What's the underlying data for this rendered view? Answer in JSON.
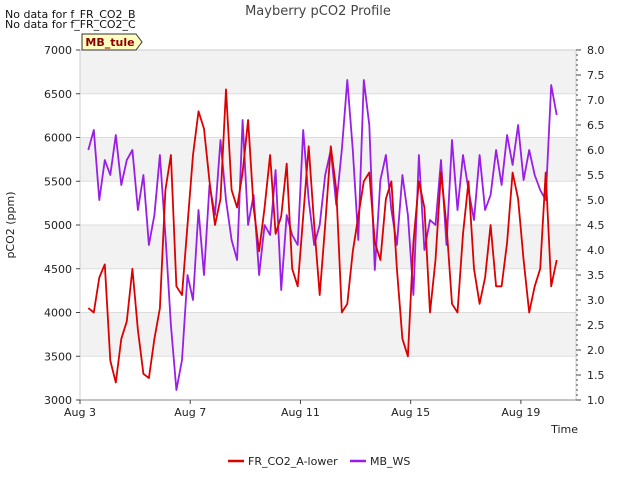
{
  "chart_data": {
    "type": "line",
    "title": "Mayberry pCO2 Profile",
    "xlabel": "Time",
    "ylabel": "pCO2 (ppm)",
    "notes": [
      "No data for f_FR_CO2_B",
      "No data for f_FR_CO2_C"
    ],
    "site_tag": "MB_tule",
    "x_ticks": [
      {
        "day": 3,
        "label": "Aug 3"
      },
      {
        "day": 7,
        "label": "Aug 7"
      },
      {
        "day": 11,
        "label": "Aug 11"
      },
      {
        "day": 15,
        "label": "Aug 15"
      },
      {
        "day": 19,
        "label": "Aug 19"
      }
    ],
    "xlim": [
      3,
      21
    ],
    "ylim": [
      3000,
      7000
    ],
    "y_ticks": [
      3000,
      3500,
      4000,
      4500,
      5000,
      5500,
      6000,
      6500,
      7000
    ],
    "y2lim": [
      1.0,
      8.0
    ],
    "y2_ticks": [
      1.0,
      1.5,
      2.0,
      2.5,
      3.0,
      3.5,
      4.0,
      4.5,
      5.0,
      5.5,
      6.0,
      6.5,
      7.0,
      7.5,
      8.0
    ],
    "y2_tick_labels": [
      "1.0",
      "1.5",
      "2.0",
      "2.5",
      "3.0",
      "3.5",
      "4.0",
      "4.5",
      "5.0",
      "5.5",
      "6.0",
      "6.5",
      "7.0",
      "7.5",
      "8.0"
    ],
    "series": [
      {
        "name": "FR_CO2_A-lower",
        "color": "#dd0000",
        "axis": "left",
        "x": [
          3.3,
          3.5,
          3.7,
          3.9,
          4.1,
          4.3,
          4.5,
          4.7,
          4.9,
          5.1,
          5.3,
          5.5,
          5.7,
          5.9,
          6.1,
          6.3,
          6.5,
          6.7,
          6.9,
          7.1,
          7.3,
          7.5,
          7.7,
          7.9,
          8.1,
          8.3,
          8.5,
          8.7,
          8.9,
          9.1,
          9.3,
          9.5,
          9.7,
          9.9,
          10.1,
          10.3,
          10.5,
          10.7,
          10.9,
          11.1,
          11.3,
          11.5,
          11.7,
          11.9,
          12.1,
          12.3,
          12.5,
          12.7,
          12.9,
          13.1,
          13.3,
          13.5,
          13.7,
          13.9,
          14.1,
          14.3,
          14.5,
          14.7,
          14.9,
          15.1,
          15.3,
          15.5,
          15.7,
          15.9,
          16.1,
          16.3,
          16.5,
          16.7,
          16.9,
          17.1,
          17.3,
          17.5,
          17.7,
          17.9,
          18.1,
          18.3,
          18.5,
          18.7,
          18.9,
          19.1,
          19.3,
          19.5,
          19.7,
          19.9,
          20.1,
          20.3
        ],
        "values": [
          4050,
          4000,
          4400,
          4550,
          3450,
          3200,
          3700,
          3900,
          4500,
          3800,
          3300,
          3250,
          3700,
          4050,
          5400,
          5800,
          4300,
          4200,
          5000,
          5800,
          6300,
          6100,
          5500,
          5000,
          5300,
          6550,
          5400,
          5200,
          5600,
          6200,
          5200,
          4700,
          5200,
          5800,
          4900,
          5100,
          5700,
          4500,
          4300,
          5100,
          5900,
          5000,
          4200,
          5000,
          5900,
          5400,
          4000,
          4100,
          4700,
          5100,
          5500,
          5600,
          4800,
          4600,
          5300,
          5500,
          4500,
          3700,
          3500,
          4800,
          5500,
          5200,
          4000,
          4600,
          5600,
          5000,
          4100,
          4000,
          4900,
          5500,
          4500,
          4100,
          4400,
          5000,
          4300,
          4300,
          4800,
          5600,
          5300,
          4600,
          4000,
          4300,
          4500,
          5600,
          4300,
          4600
        ]
      },
      {
        "name": "MB_WS",
        "color": "#9a1ee6",
        "axis": "right",
        "x": [
          3.3,
          3.5,
          3.7,
          3.9,
          4.1,
          4.3,
          4.5,
          4.7,
          4.9,
          5.1,
          5.3,
          5.5,
          5.7,
          5.9,
          6.1,
          6.3,
          6.5,
          6.7,
          6.9,
          7.1,
          7.3,
          7.5,
          7.7,
          7.9,
          8.1,
          8.3,
          8.5,
          8.7,
          8.9,
          9.1,
          9.3,
          9.5,
          9.7,
          9.9,
          10.1,
          10.3,
          10.5,
          10.7,
          10.9,
          11.1,
          11.3,
          11.5,
          11.7,
          11.9,
          12.1,
          12.3,
          12.5,
          12.7,
          12.9,
          13.1,
          13.3,
          13.5,
          13.7,
          13.9,
          14.1,
          14.3,
          14.5,
          14.7,
          14.9,
          15.1,
          15.3,
          15.5,
          15.7,
          15.9,
          16.1,
          16.3,
          16.5,
          16.7,
          16.9,
          17.1,
          17.3,
          17.5,
          17.7,
          17.9,
          18.1,
          18.3,
          18.5,
          18.7,
          18.9,
          19.1,
          19.3,
          19.5,
          19.7,
          19.9,
          20.1,
          20.3
        ],
        "values": [
          6.0,
          6.4,
          5.0,
          5.8,
          5.5,
          6.3,
          5.3,
          5.8,
          6.0,
          4.8,
          5.5,
          4.1,
          4.7,
          5.9,
          4.3,
          2.5,
          1.2,
          1.8,
          3.5,
          3.0,
          4.8,
          3.5,
          5.3,
          4.7,
          6.2,
          5.0,
          4.2,
          3.8,
          6.6,
          4.5,
          5.1,
          3.5,
          4.5,
          4.3,
          5.6,
          3.2,
          4.7,
          4.3,
          4.1,
          6.4,
          5.0,
          4.1,
          4.5,
          5.5,
          6.0,
          4.9,
          6.0,
          7.4,
          6.0,
          4.2,
          7.4,
          6.5,
          3.6,
          5.4,
          5.9,
          4.8,
          4.1,
          5.5,
          4.7,
          3.1,
          5.9,
          4.0,
          4.6,
          4.5,
          5.8,
          4.1,
          6.2,
          4.8,
          5.9,
          5.2,
          4.6,
          5.9,
          4.8,
          5.1,
          6.0,
          5.3,
          6.3,
          5.7,
          6.5,
          5.4,
          6.0,
          5.5,
          5.2,
          5.0,
          7.3,
          6.7
        ]
      }
    ],
    "legend_position": "bottom-center"
  }
}
